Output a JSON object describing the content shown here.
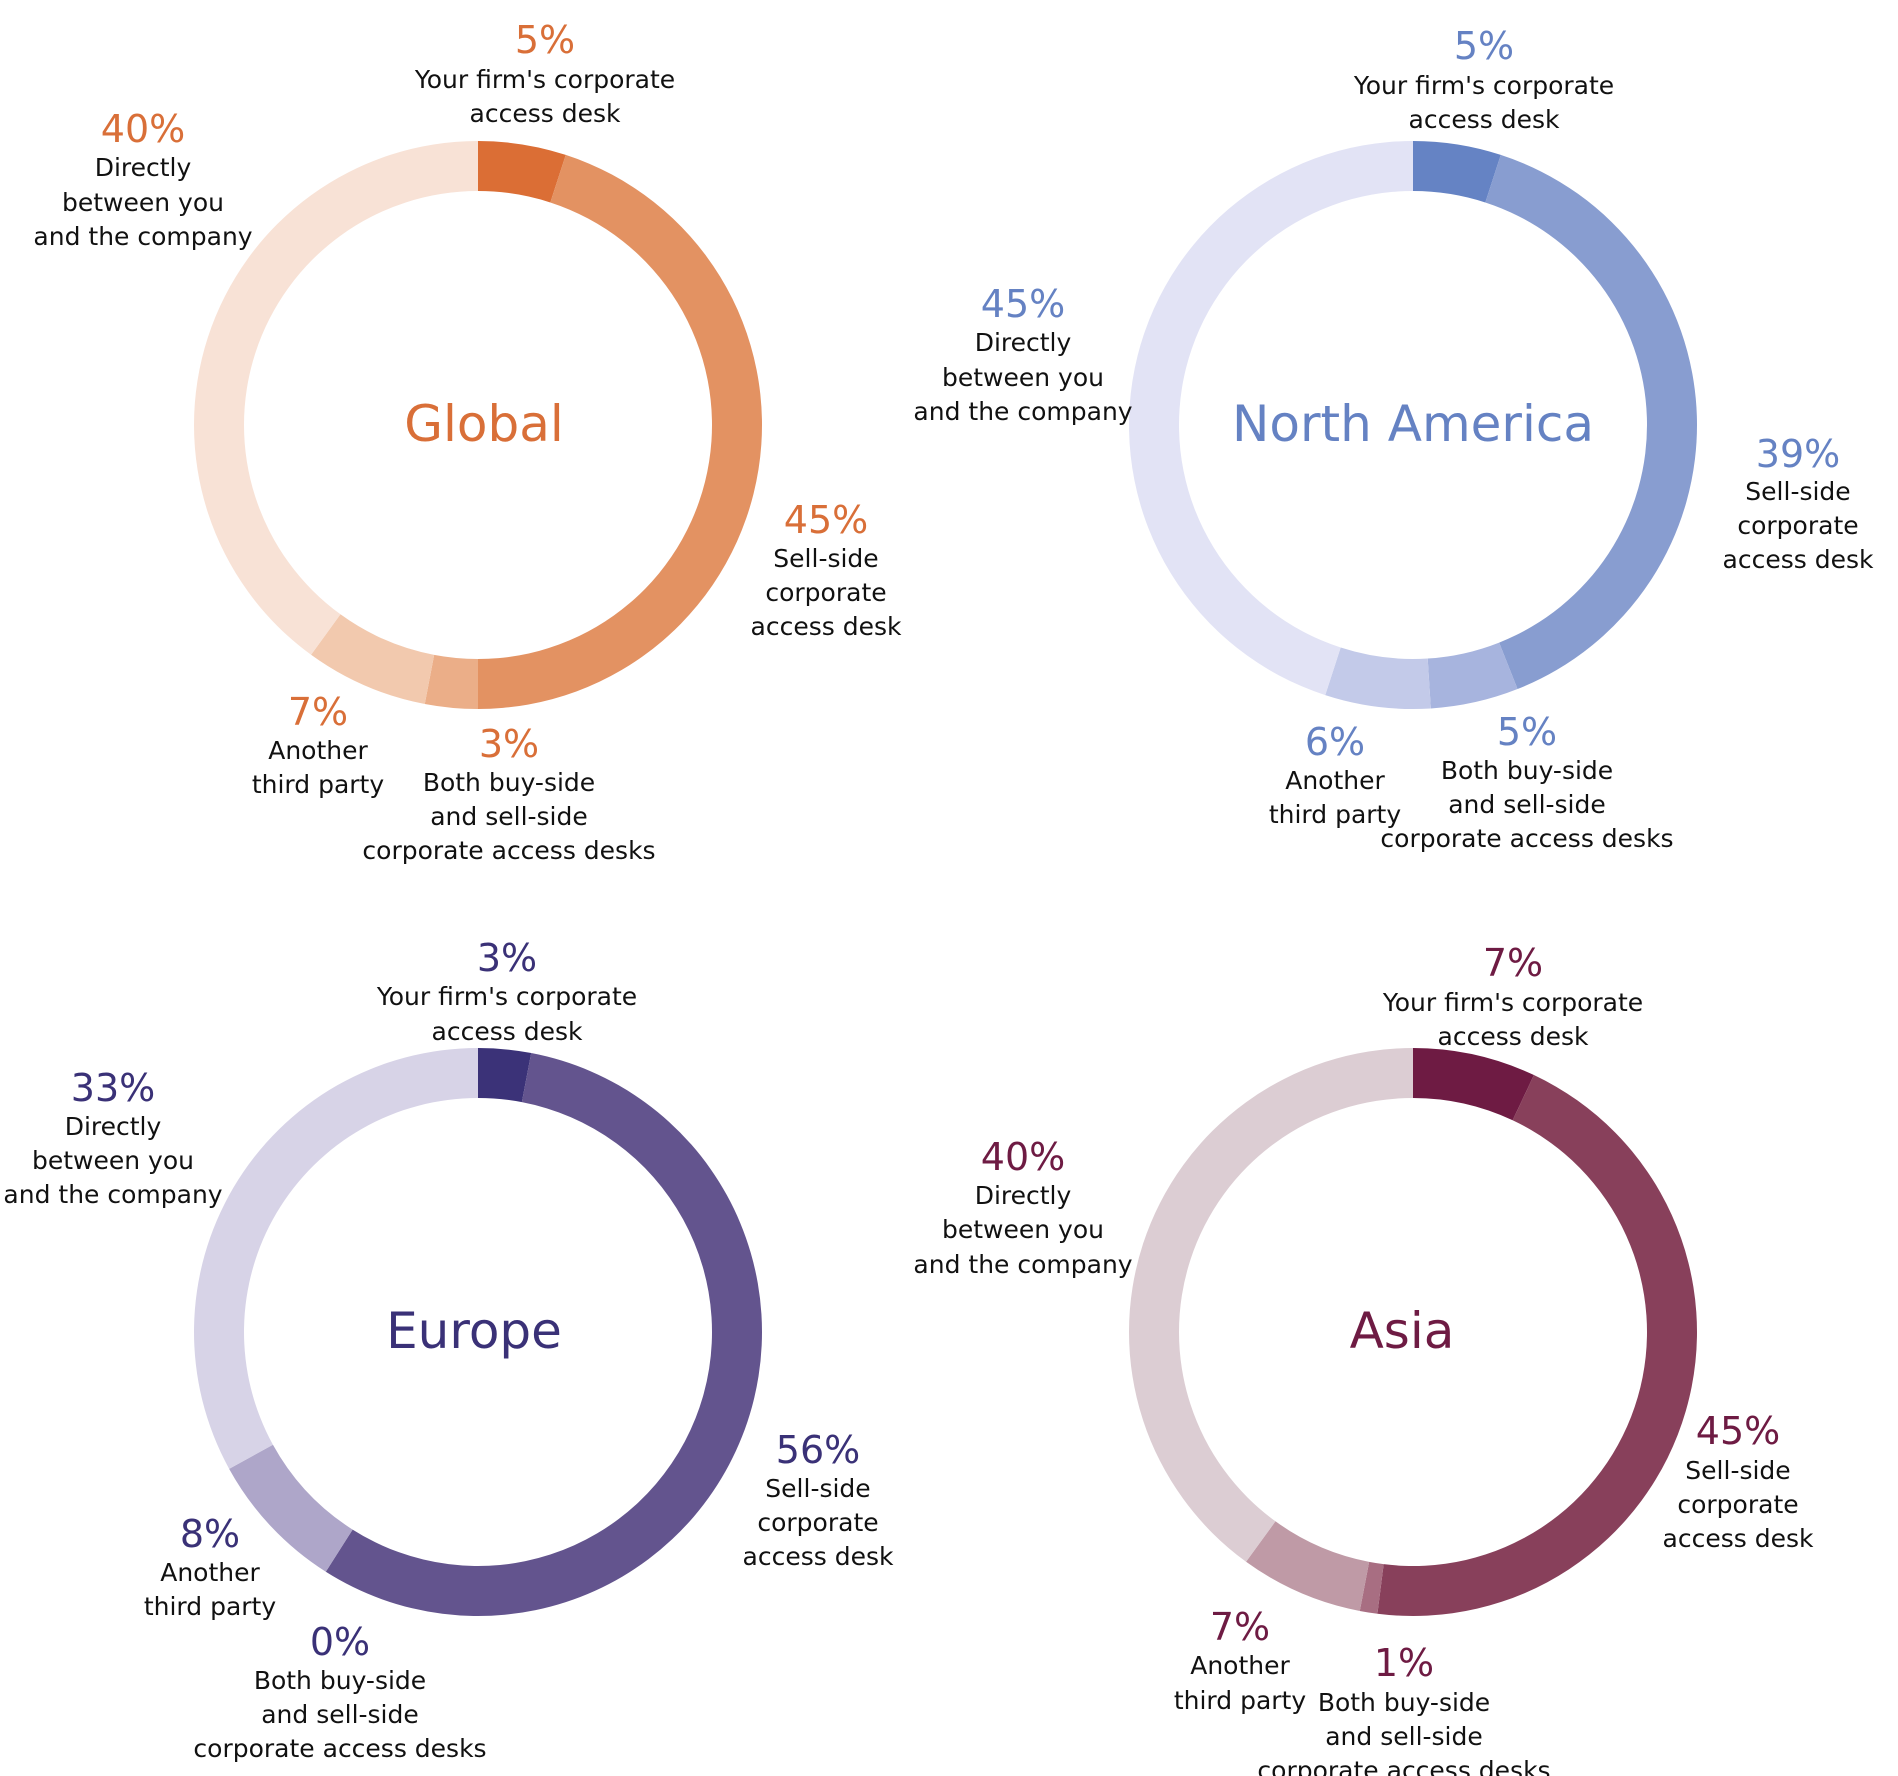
{
  "chart_data": [
    {
      "type": "pie",
      "title": "Global",
      "color": "#d96f38",
      "categories": [
        "Your firm's corporate access desk",
        "Sell-side corporate access desk",
        "Both buy-side and sell-side corporate access desks",
        "Another third party",
        "Directly between you and the company"
      ],
      "values": [
        5,
        45,
        3,
        7,
        40
      ],
      "value_labels": [
        "5%",
        "45%",
        "3%",
        "7%",
        "40%"
      ],
      "segment_colors": [
        "#db6e35",
        "#e39262",
        "#ebae88",
        "#f2c9ae",
        "#f8e2d6"
      ]
    },
    {
      "type": "pie",
      "title": "North America",
      "color": "#6582c3",
      "categories": [
        "Your firm's corporate access desk",
        "Sell-side corporate access desk",
        "Both buy-side and sell-side corporate access desks",
        "Another third party",
        "Directly between you and the company"
      ],
      "values": [
        5,
        39,
        5,
        6,
        45
      ],
      "value_labels": [
        "5%",
        "39%",
        "5%",
        "6%",
        "45%"
      ],
      "segment_colors": [
        "#6583c4",
        "#889dd0",
        "#a7b4de",
        "#c3cae9",
        "#e2e3f5"
      ]
    },
    {
      "type": "pie",
      "title": "Europe",
      "color": "#3a3177",
      "categories": [
        "Your firm's corporate access desk",
        "Sell-side corporate access desk",
        "Both buy-side and sell-side corporate access desks",
        "Another third party",
        "Directly between you and the company"
      ],
      "values": [
        3,
        56,
        0,
        8,
        33
      ],
      "value_labels": [
        "3%",
        "56%",
        "0%",
        "8%",
        "33%"
      ],
      "segment_colors": [
        "#3b3278",
        "#63548e",
        "#8d80b0",
        "#aea6c9",
        "#d7d3e7"
      ]
    },
    {
      "type": "pie",
      "title": "Asia",
      "color": "#6e1b43",
      "categories": [
        "Your firm's corporate access desk",
        "Sell-side corporate access desk",
        "Both buy-side and sell-side corporate access desks",
        "Another third party",
        "Directly between you and the company"
      ],
      "values": [
        7,
        45,
        1,
        7,
        40
      ],
      "value_labels": [
        "7%",
        "45%",
        "1%",
        "7%",
        "40%"
      ],
      "segment_colors": [
        "#6e1b43",
        "#88405b",
        "#a86e82",
        "#bf9aa6",
        "#dccdd3"
      ]
    }
  ]
}
